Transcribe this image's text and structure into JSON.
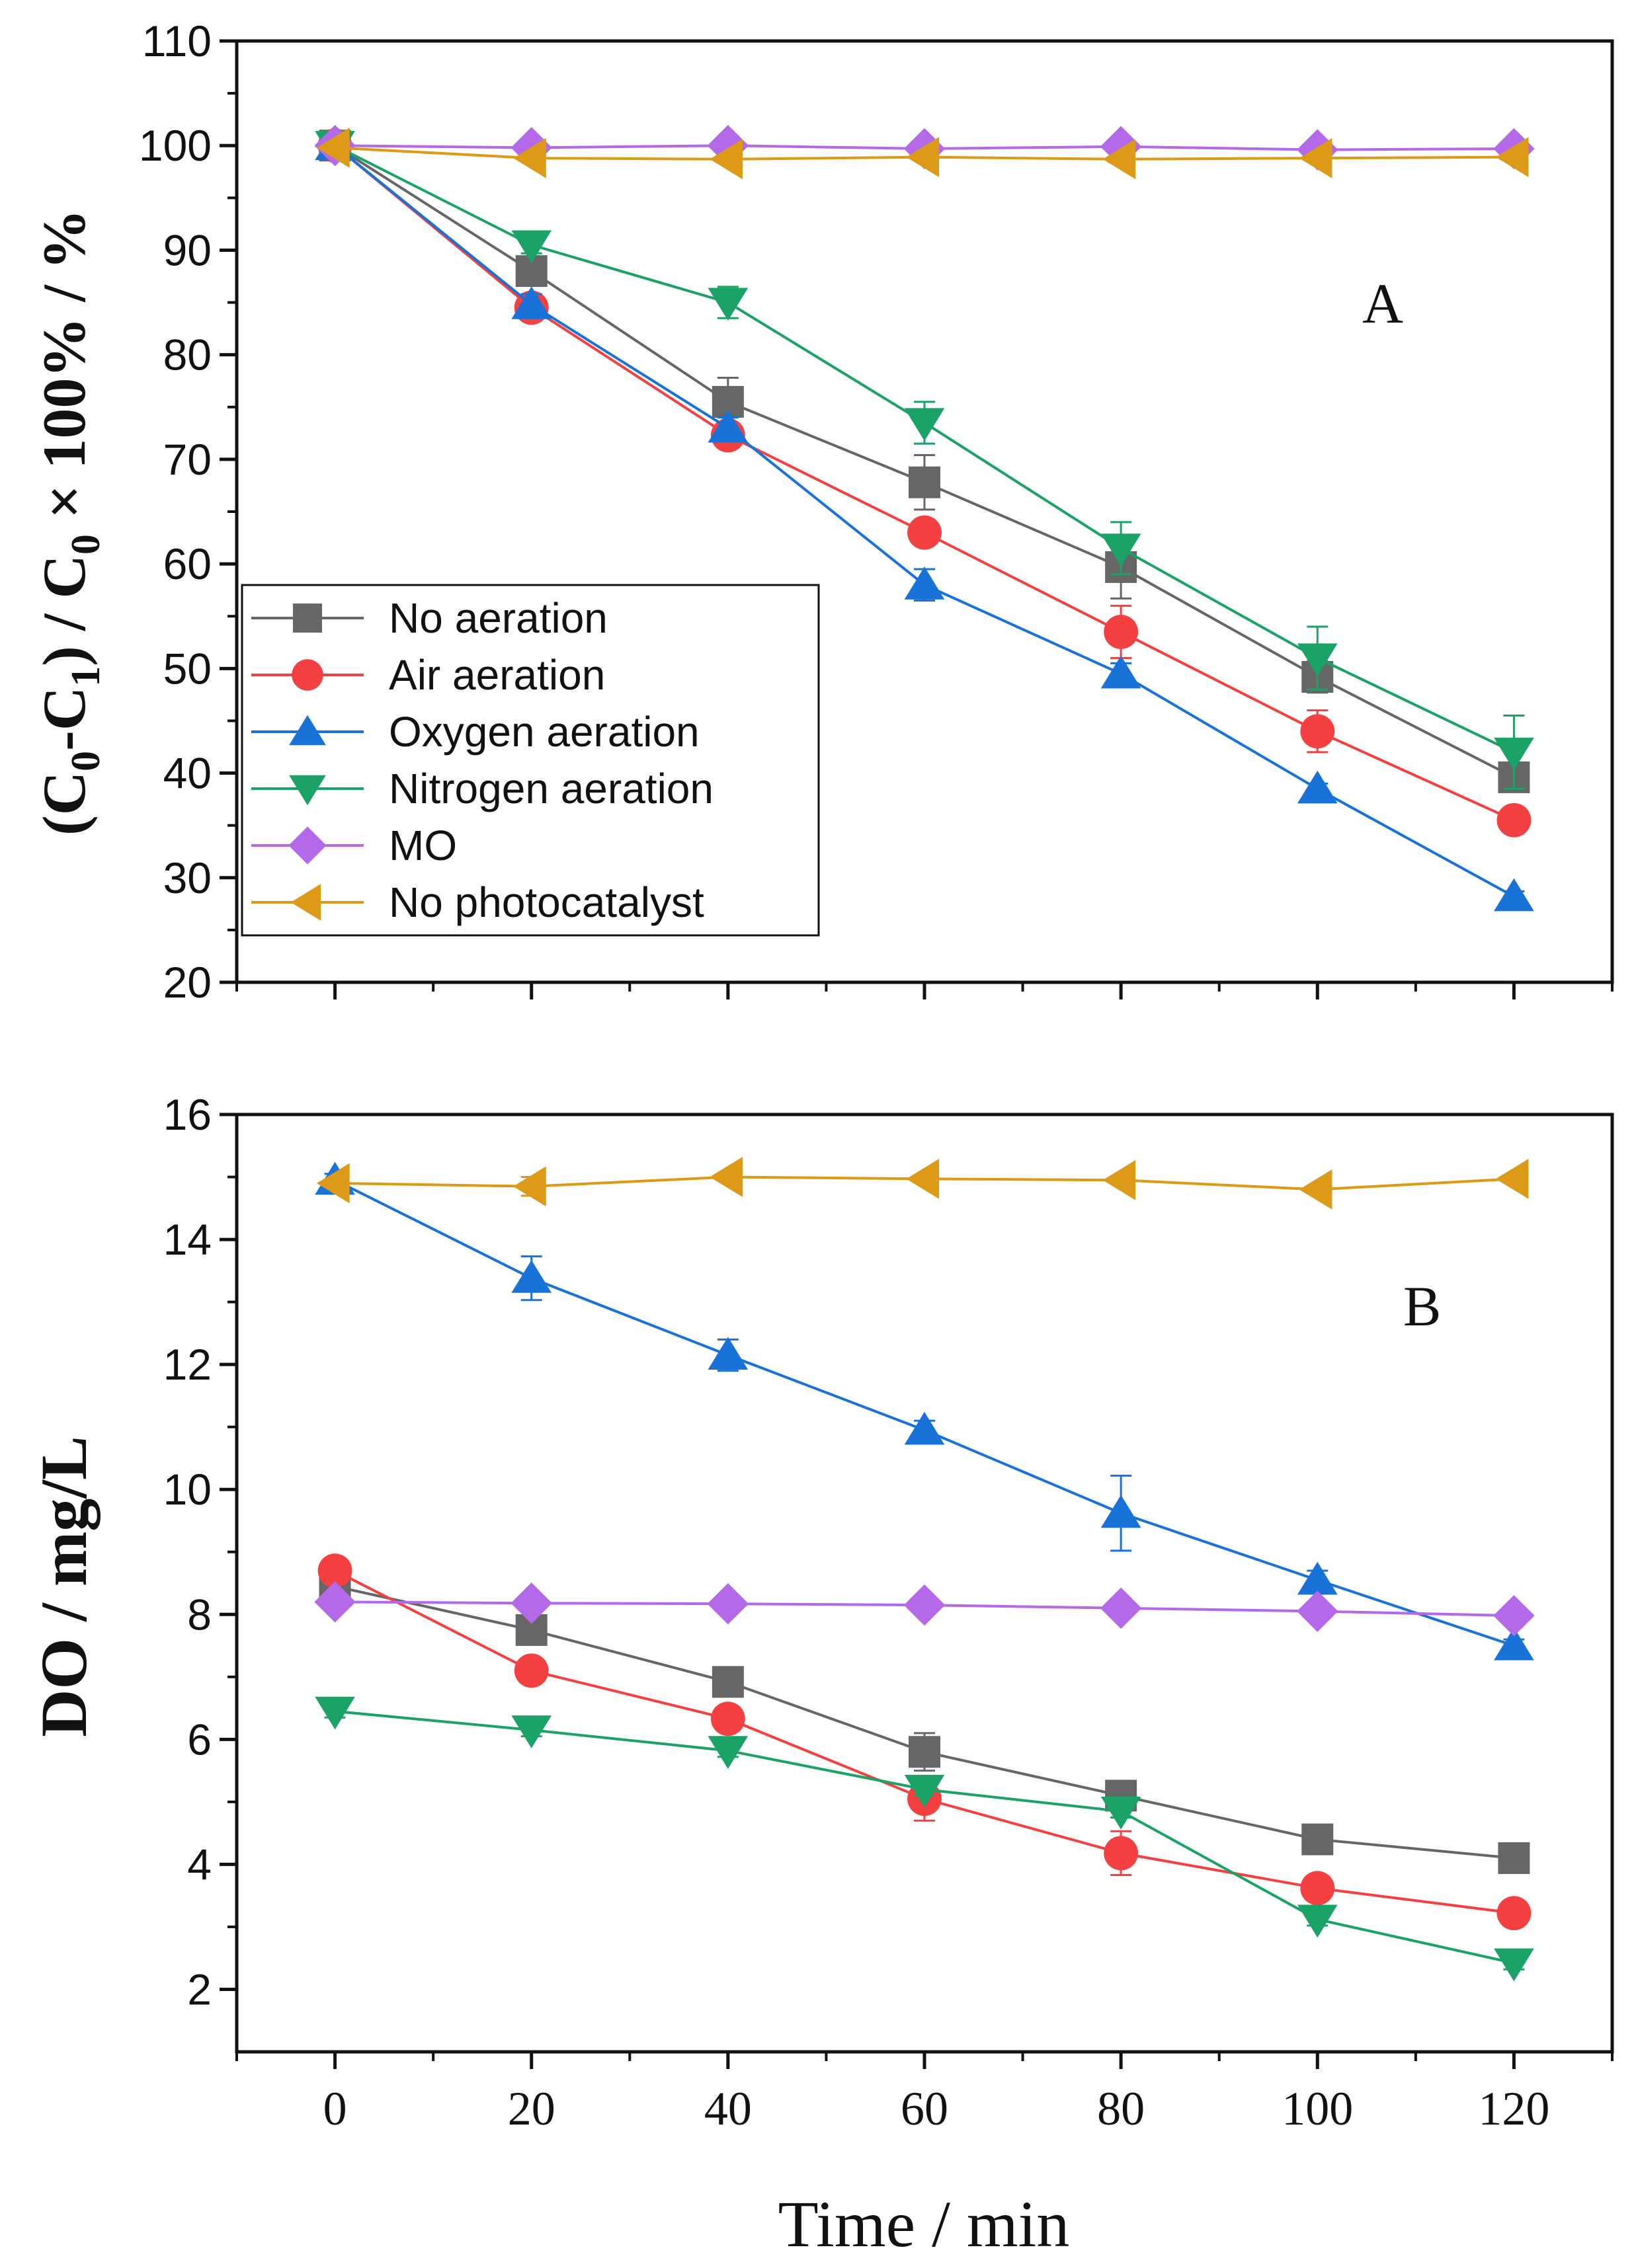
{
  "chart_data": [
    {
      "type": "line",
      "panel_label": "A",
      "ylabel_main": "(C",
      "ylabel_sub0": "0",
      "ylabel_dash": "-C",
      "ylabel_sub1": "1",
      "ylabel_mid": ") / C",
      "ylabel_sub2": "0",
      "ylabel_tail": " × 100% / %",
      "ylim": [
        20,
        110
      ],
      "yticks": [
        20,
        30,
        40,
        50,
        60,
        70,
        80,
        90,
        100,
        110
      ],
      "xlim": [
        -10,
        130
      ],
      "x": [
        0,
        20,
        40,
        60,
        80,
        100,
        120
      ],
      "legend_position": "middle-left",
      "series": [
        {
          "name": "No aeration",
          "color": "#666666",
          "marker": "square",
          "values": [
            100,
            88,
            75.5,
            67.8,
            59.7,
            49.2,
            39.6
          ],
          "errors": [
            0.5,
            1.0,
            2.3,
            2.6,
            3.0,
            1.5,
            1.0
          ]
        },
        {
          "name": "Air aeration",
          "color": "#f44040",
          "marker": "circle",
          "values": [
            100,
            84.5,
            72.3,
            63,
            53.5,
            44,
            35.5
          ],
          "errors": [
            0.5,
            1.2,
            1.0,
            1.0,
            2.5,
            2.0,
            0.5
          ]
        },
        {
          "name": "Oxygen aeration",
          "color": "#1872d8",
          "marker": "triangle-up",
          "values": [
            100,
            84.8,
            73,
            58,
            49.5,
            38.5,
            28.2
          ],
          "errors": [
            0.5,
            1.0,
            1.0,
            1.5,
            1.0,
            0.5,
            0.5
          ]
        },
        {
          "name": "Nitrogen aeration",
          "color": "#1aa267",
          "marker": "triangle-down",
          "values": [
            100,
            90.5,
            85,
            73.5,
            61.5,
            51,
            42
          ],
          "errors": [
            0.5,
            0.8,
            1.5,
            2.0,
            2.5,
            3.0,
            3.5
          ]
        },
        {
          "name": "MO",
          "color": "#b46ae8",
          "marker": "diamond",
          "values": [
            100,
            99.8,
            100,
            99.7,
            99.9,
            99.6,
            99.7
          ],
          "errors": [
            0,
            0,
            0,
            0,
            0,
            0,
            0
          ]
        },
        {
          "name": "No photocatalyst",
          "color": "#dc9a16",
          "marker": "triangle-left",
          "values": [
            99.8,
            98.8,
            98.7,
            98.9,
            98.7,
            98.8,
            98.9
          ],
          "errors": [
            0,
            0,
            0,
            0,
            0,
            0,
            0
          ]
        }
      ]
    },
    {
      "type": "line",
      "panel_label": "B",
      "ylabel": "DO / mg/L",
      "xlabel": "Time / min",
      "ylim": [
        1,
        16
      ],
      "yticks": [
        2,
        4,
        6,
        8,
        10,
        12,
        14,
        16
      ],
      "xlim": [
        -10,
        130
      ],
      "x": [
        0,
        20,
        40,
        60,
        80,
        100,
        120
      ],
      "xticks": [
        0,
        20,
        40,
        60,
        80,
        100,
        120
      ],
      "series": [
        {
          "name": "No aeration",
          "color": "#666666",
          "marker": "square",
          "values": [
            8.45,
            7.75,
            6.92,
            5.8,
            5.1,
            4.4,
            4.1
          ],
          "errors": [
            0.1,
            0.1,
            0.1,
            0.3,
            0.1,
            0.1,
            0.1
          ]
        },
        {
          "name": "Air aeration",
          "color": "#f44040",
          "marker": "circle",
          "values": [
            8.7,
            7.1,
            6.33,
            5.05,
            4.18,
            3.62,
            3.22
          ],
          "errors": [
            0.1,
            0.1,
            0.1,
            0.35,
            0.35,
            0.1,
            0.1
          ]
        },
        {
          "name": "Oxygen aeration",
          "color": "#1872d8",
          "marker": "triangle-up",
          "values": [
            14.95,
            13.38,
            12.15,
            10.95,
            9.62,
            8.55,
            7.5
          ],
          "errors": [
            0.1,
            0.35,
            0.25,
            0.15,
            0.6,
            0.15,
            0.1
          ]
        },
        {
          "name": "Nitrogen aeration",
          "color": "#1aa267",
          "marker": "triangle-down",
          "values": [
            6.45,
            6.15,
            5.82,
            5.2,
            4.85,
            3.12,
            2.42
          ],
          "errors": [
            0.1,
            0.1,
            0.1,
            0.1,
            0.1,
            0.1,
            0.1
          ]
        },
        {
          "name": "MO",
          "color": "#b46ae8",
          "marker": "diamond",
          "values": [
            8.2,
            8.18,
            8.17,
            8.15,
            8.1,
            8.05,
            7.98
          ],
          "errors": [
            0,
            0,
            0,
            0,
            0,
            0,
            0
          ]
        },
        {
          "name": "No photocatalyst",
          "color": "#dc9a16",
          "marker": "triangle-left",
          "values": [
            14.9,
            14.85,
            15.0,
            14.97,
            14.95,
            14.8,
            14.97
          ],
          "errors": [
            0,
            0.15,
            0,
            0,
            0,
            0,
            0
          ]
        }
      ]
    }
  ]
}
